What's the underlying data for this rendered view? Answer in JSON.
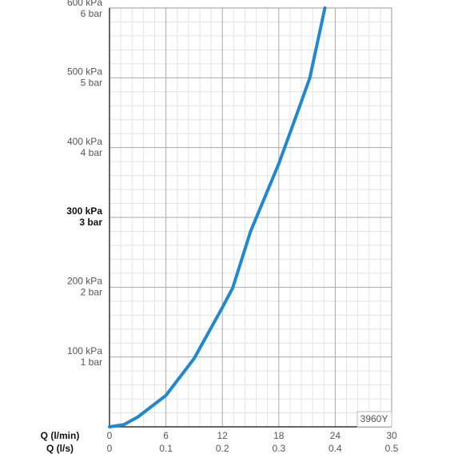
{
  "chart_data": {
    "type": "line",
    "xlabel": "Q (l/min)",
    "x2label": "Q (l/s)",
    "annotation": "3960Y",
    "xlim": [
      0,
      30
    ],
    "xticks": [
      0,
      6,
      12,
      18,
      24,
      30
    ],
    "x2lim": [
      0,
      0.5
    ],
    "x2ticks": [
      0,
      0.1,
      0.2,
      0.3,
      0.4,
      0.5
    ],
    "ylim": [
      0,
      600
    ],
    "yticks": [
      {
        "value": 100,
        "label": [
          "100 kPa",
          "1 bar"
        ]
      },
      {
        "value": 200,
        "label": [
          "200 kPa",
          "2 bar"
        ]
      },
      {
        "value": 300,
        "label": [
          "300 kPa",
          "3 bar"
        ]
      },
      {
        "value": 400,
        "label": [
          "400 kPa",
          "4 bar"
        ]
      },
      {
        "value": 500,
        "label": [
          "500 kPa",
          "5 bar"
        ]
      },
      {
        "value": 600,
        "label": [
          "600 kPa",
          "6 bar"
        ]
      }
    ],
    "highlight_ytick": 300,
    "grid": true,
    "x_minor_ticks": [
      1.2,
      2.4,
      3.6,
      4.8,
      7.2,
      8.4,
      9.6,
      10.8,
      13.2,
      14.4,
      15.6,
      16.8,
      19.2,
      20.4,
      21.6,
      22.8,
      25.2,
      26.4,
      27.6,
      28.8
    ],
    "y_minor_ticks": [
      20,
      40,
      60,
      80,
      120,
      140,
      160,
      180,
      220,
      240,
      260,
      280,
      320,
      340,
      360,
      380,
      420,
      440,
      460,
      480,
      520,
      540,
      560,
      580
    ],
    "series": [
      {
        "color": "#1f88d0",
        "x": [
          0,
          1.5,
          3,
          6,
          9,
          12,
          13.1,
          15,
          18,
          20,
          21.3,
          22.9
        ],
        "values": [
          0,
          3,
          14,
          45,
          98,
          171,
          199,
          280,
          377,
          451,
          500,
          600
        ]
      }
    ]
  }
}
